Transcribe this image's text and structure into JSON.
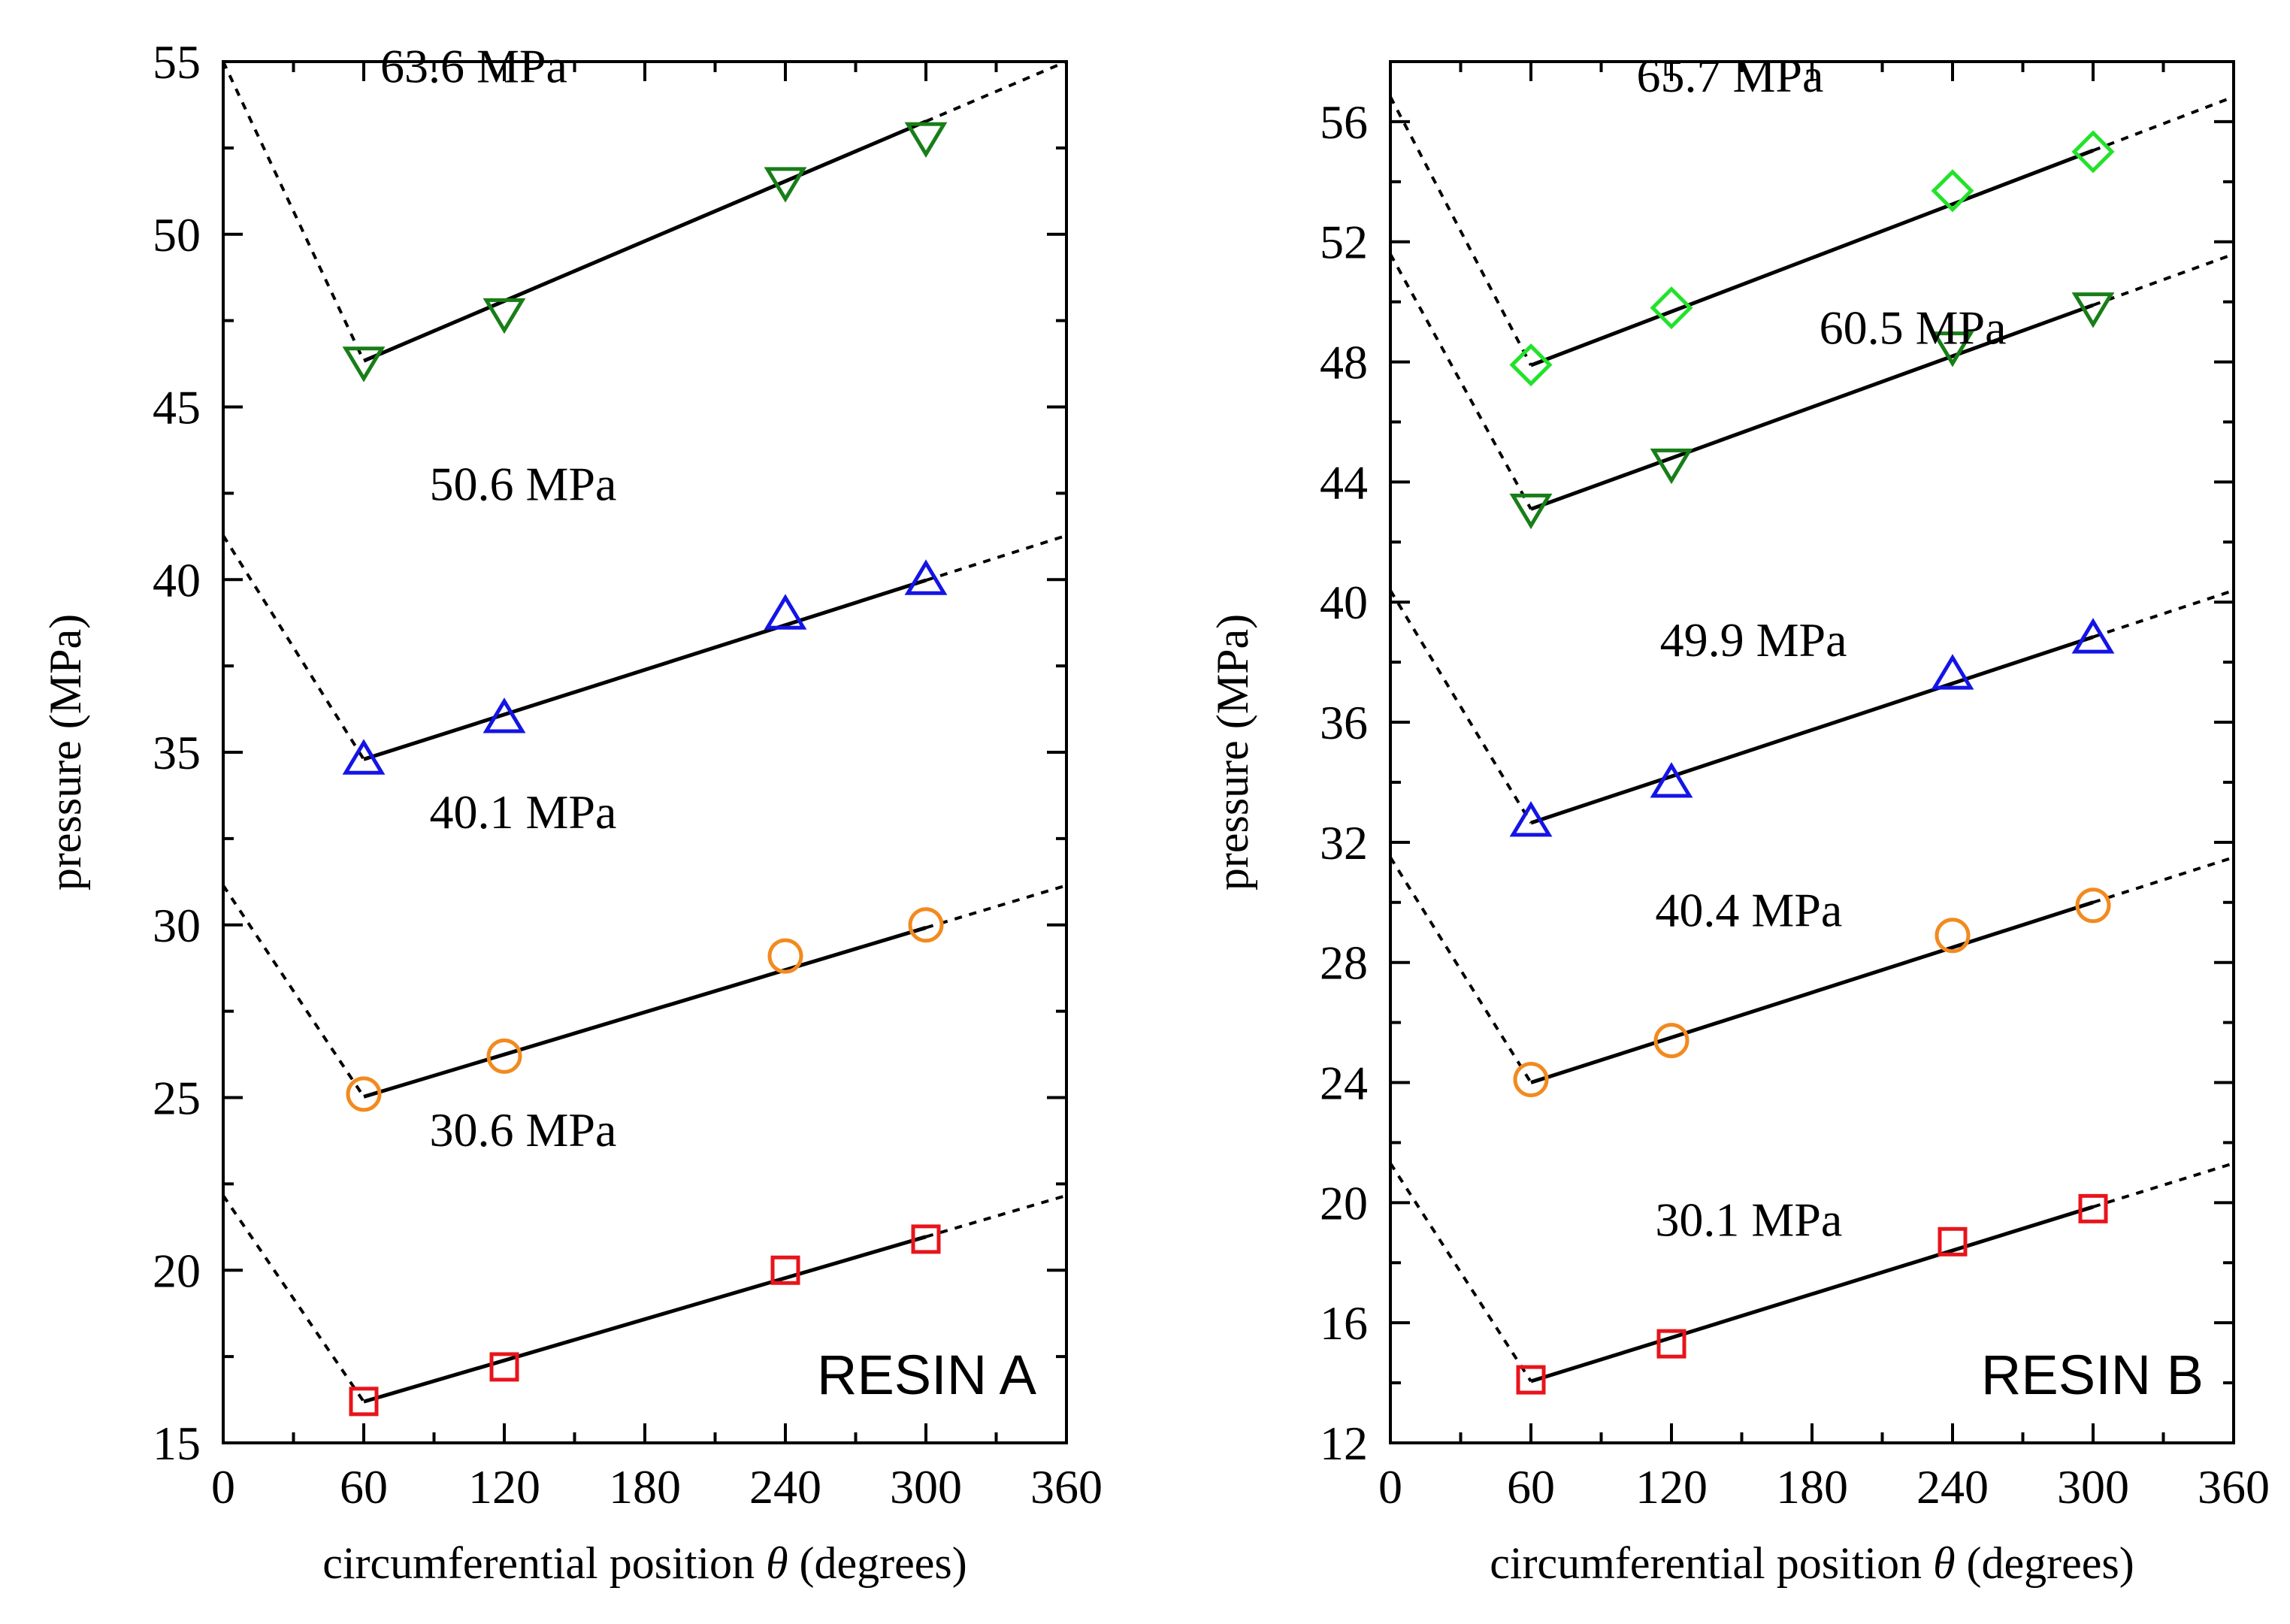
{
  "chart_data": [
    {
      "type": "scatter",
      "panel_label": "RESIN A",
      "ylabel": "pressure (MPa)",
      "xlabel_prefix": "circumferential position ",
      "xlabel_symbol": "θ",
      "xlabel_suffix": " (degrees)",
      "xlim": [
        0,
        360
      ],
      "ylim": [
        15,
        55
      ],
      "xticks": [
        0,
        60,
        120,
        180,
        240,
        300,
        360
      ],
      "yticks": [
        15,
        20,
        25,
        30,
        35,
        40,
        45,
        50,
        55
      ],
      "x": [
        60,
        120,
        240,
        300
      ],
      "series": [
        {
          "name": "30.6 MPa",
          "marker": "square",
          "color": "#e8141b",
          "values": [
            16.2,
            17.2,
            20.0,
            20.9
          ],
          "fit": {
            "slope": 0.0199,
            "intercept": 15.0
          }
        },
        {
          "name": "40.1 MPa",
          "marker": "circle",
          "color": "#f28a1f",
          "values": [
            25.1,
            26.2,
            29.1,
            30.0
          ],
          "fit": {
            "slope": 0.0204,
            "intercept": 23.8
          }
        },
        {
          "name": "50.6 MPa",
          "marker": "triangle-up",
          "color": "#1414e6",
          "values": [
            34.8,
            36.0,
            39.0,
            40.0
          ],
          "fit": {
            "slope": 0.0216,
            "intercept": 33.5
          }
        },
        {
          "name": "63.6 MPa",
          "marker": "triangle-down",
          "color": "#187e18",
          "values": [
            46.3,
            47.7,
            51.5,
            52.8
          ],
          "fit": {
            "slope": 0.0289,
            "intercept": 44.6
          }
        }
      ],
      "series_labels": [
        {
          "text": "30.6 MPa",
          "x": 128,
          "y": 23.6
        },
        {
          "text": "40.1 MPa",
          "x": 128,
          "y": 32.8
        },
        {
          "text": "50.6 MPa",
          "x": 128,
          "y": 42.3
        },
        {
          "text": "63.6 MPa",
          "x": 107,
          "y": 54.4
        }
      ]
    },
    {
      "type": "scatter",
      "panel_label": "RESIN B",
      "ylabel": "pressure (MPa)",
      "xlabel_prefix": "circumferential position ",
      "xlabel_symbol": "θ",
      "xlabel_suffix": " (degrees)",
      "xlim": [
        0,
        360
      ],
      "ylim": [
        12,
        58
      ],
      "xticks": [
        0,
        60,
        120,
        180,
        240,
        300,
        360
      ],
      "yticks": [
        12,
        16,
        20,
        24,
        28,
        32,
        36,
        40,
        44,
        48,
        52,
        56
      ],
      "x": [
        60,
        120,
        240,
        300
      ],
      "series": [
        {
          "name": "30.1 MPa",
          "marker": "square",
          "color": "#e8141b",
          "values": [
            14.1,
            15.3,
            18.7,
            19.8
          ],
          "fit": {
            "slope": 0.0242,
            "intercept": 12.6
          }
        },
        {
          "name": "40.4 MPa",
          "marker": "circle",
          "color": "#f28a1f",
          "values": [
            24.1,
            25.4,
            28.9,
            29.9
          ],
          "fit": {
            "slope": 0.025,
            "intercept": 22.5
          }
        },
        {
          "name": "49.9 MPa",
          "marker": "triangle-up",
          "color": "#1414e6",
          "values": [
            32.7,
            34.0,
            37.6,
            38.8
          ],
          "fit": {
            "slope": 0.0258,
            "intercept": 31.1
          }
        },
        {
          "name": "60.5 MPa",
          "marker": "triangle-down",
          "color": "#187e18",
          "values": [
            43.1,
            44.6,
            48.5,
            49.8
          ],
          "fit": {
            "slope": 0.0283,
            "intercept": 41.4
          }
        },
        {
          "name": "65.7 MPa",
          "marker": "diamond",
          "color": "#22e22a",
          "values": [
            47.9,
            49.8,
            53.7,
            55.0
          ],
          "fit": {
            "slope": 0.0298,
            "intercept": 46.1
          }
        }
      ],
      "series_labels": [
        {
          "text": "30.1 MPa",
          "x": 153,
          "y": 18.9
        },
        {
          "text": "40.4 MPa",
          "x": 153,
          "y": 29.2
        },
        {
          "text": "49.9 MPa",
          "x": 155,
          "y": 38.2
        },
        {
          "text": "60.5 MPa",
          "x": 223,
          "y": 48.6
        },
        {
          "text": "65.7 MPa",
          "x": 145,
          "y": 57.0
        }
      ]
    }
  ]
}
